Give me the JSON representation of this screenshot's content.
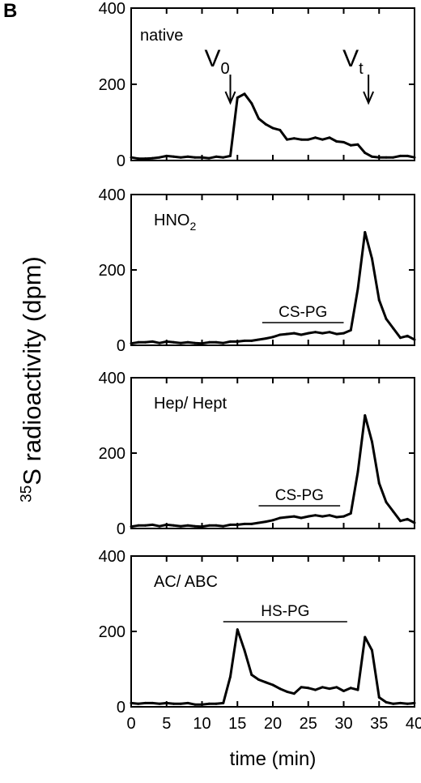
{
  "panel_label": "B",
  "ylabel_super": "35",
  "ylabel_main": "S",
  "ylabel_rest": " radioactivity (dpm)",
  "xlabel": "time (min)",
  "chart_data": [
    {
      "type": "line",
      "panel_label": "native",
      "x": [
        0,
        1,
        2,
        3,
        4,
        5,
        6,
        7,
        8,
        9,
        10,
        11,
        12,
        13,
        14,
        15,
        16,
        17,
        18,
        19,
        20,
        21,
        22,
        23,
        24,
        25,
        26,
        27,
        28,
        29,
        30,
        31,
        32,
        33,
        34,
        35,
        36,
        37,
        38,
        39,
        40
      ],
      "y": [
        8,
        5,
        5,
        6,
        8,
        12,
        10,
        8,
        10,
        8,
        8,
        6,
        10,
        8,
        12,
        165,
        175,
        150,
        110,
        95,
        85,
        80,
        55,
        58,
        55,
        55,
        60,
        55,
        60,
        50,
        48,
        40,
        42,
        20,
        10,
        8,
        8,
        8,
        12,
        12,
        8
      ],
      "ylim": [
        0,
        400
      ],
      "yticks": [
        0,
        200,
        400
      ],
      "annotations": [
        {
          "main": "V",
          "sub": "0",
          "at_x": 14
        },
        {
          "main": "V",
          "sub": "t",
          "at_x": 33.5
        }
      ]
    },
    {
      "type": "line",
      "panel_label_main": "HNO",
      "panel_label_sub": "2",
      "x": [
        0,
        1,
        2,
        3,
        4,
        5,
        6,
        7,
        8,
        9,
        10,
        11,
        12,
        13,
        14,
        15,
        16,
        17,
        18,
        19,
        20,
        21,
        22,
        23,
        24,
        25,
        26,
        27,
        28,
        29,
        30,
        31,
        32,
        33,
        34,
        35,
        36,
        37,
        38,
        39,
        40
      ],
      "y": [
        5,
        8,
        8,
        10,
        6,
        10,
        8,
        6,
        8,
        6,
        5,
        8,
        8,
        6,
        10,
        10,
        12,
        12,
        15,
        18,
        22,
        28,
        30,
        32,
        28,
        32,
        35,
        32,
        35,
        30,
        32,
        40,
        150,
        300,
        230,
        120,
        70,
        45,
        20,
        25,
        15
      ],
      "ylim": [
        0,
        400
      ],
      "yticks": [
        0,
        200,
        400
      ],
      "bar": {
        "label": "CS-PG",
        "from": 18.5,
        "to": 30
      }
    },
    {
      "type": "line",
      "panel_label": "Hep/ Hept",
      "x": [
        0,
        1,
        2,
        3,
        4,
        5,
        6,
        7,
        8,
        9,
        10,
        11,
        12,
        13,
        14,
        15,
        16,
        17,
        18,
        19,
        20,
        21,
        22,
        23,
        24,
        25,
        26,
        27,
        28,
        29,
        30,
        31,
        32,
        33,
        34,
        35,
        36,
        37,
        38,
        39,
        40
      ],
      "y": [
        5,
        8,
        8,
        10,
        6,
        10,
        8,
        6,
        8,
        6,
        5,
        8,
        8,
        6,
        10,
        10,
        12,
        12,
        15,
        18,
        22,
        28,
        30,
        32,
        28,
        32,
        35,
        32,
        35,
        30,
        32,
        40,
        150,
        300,
        230,
        120,
        70,
        45,
        20,
        25,
        15
      ],
      "ylim": [
        0,
        400
      ],
      "yticks": [
        0,
        200,
        400
      ],
      "bar": {
        "label": "CS-PG",
        "from": 18,
        "to": 29.5
      }
    },
    {
      "type": "line",
      "panel_label": "AC/ ABC",
      "x": [
        0,
        1,
        2,
        3,
        4,
        5,
        6,
        7,
        8,
        9,
        10,
        11,
        12,
        13,
        14,
        15,
        16,
        17,
        18,
        19,
        20,
        21,
        22,
        23,
        24,
        25,
        26,
        27,
        28,
        29,
        30,
        31,
        32,
        33,
        34,
        35,
        36,
        37,
        38,
        39,
        40
      ],
      "y": [
        10,
        8,
        10,
        10,
        8,
        10,
        8,
        8,
        10,
        6,
        6,
        8,
        8,
        10,
        80,
        205,
        150,
        85,
        72,
        65,
        58,
        48,
        40,
        35,
        52,
        50,
        45,
        52,
        48,
        52,
        42,
        50,
        45,
        185,
        150,
        25,
        12,
        8,
        10,
        8,
        10
      ],
      "ylim": [
        0,
        400
      ],
      "yticks": [
        0,
        200,
        400
      ],
      "bar": {
        "label": "HS-PG",
        "from": 13,
        "to": 30.5
      }
    }
  ],
  "xlim": [
    0,
    40
  ],
  "xticks": [
    0,
    5,
    10,
    15,
    20,
    25,
    30,
    35,
    40
  ]
}
